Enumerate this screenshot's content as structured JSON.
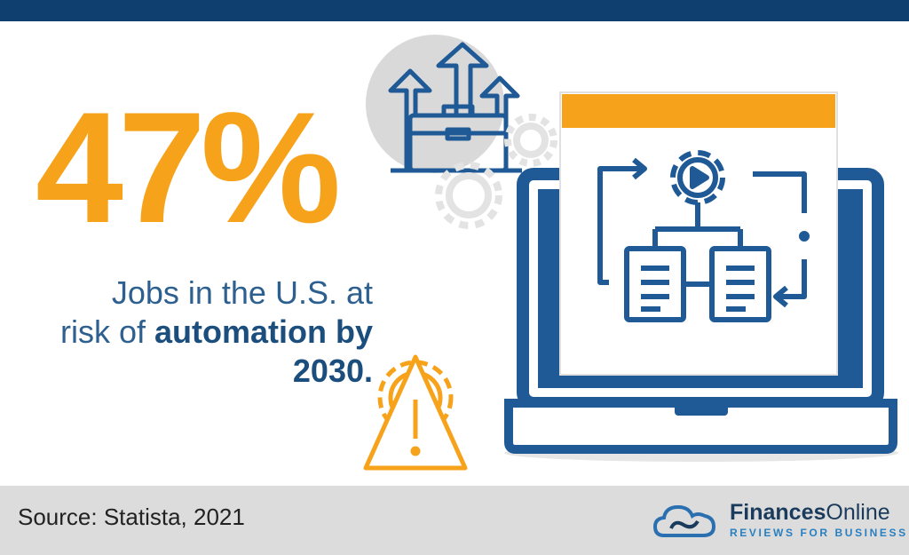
{
  "headline": {
    "stat": "47%",
    "line1": "Jobs in the U.S. at",
    "line2_prefix": "risk of ",
    "line2_bold": "automation by",
    "line3_bold": "2030."
  },
  "footer": {
    "source": "Source: Statista, 2021"
  },
  "brand": {
    "name_bold": "Finances",
    "name_light": "Online",
    "tagline": "REVIEWS FOR BUSINESS"
  },
  "icons": [
    "briefcase-arrows-icon",
    "gear-icon",
    "warning-gear-icon",
    "laptop-icon",
    "workflow-gear-icon",
    "cloud-logo-icon"
  ],
  "colors": {
    "navy": "#0f3f6e",
    "orange": "#f7a21b",
    "blue": "#2d5f8f",
    "footer_gray": "#dcdcdc"
  }
}
